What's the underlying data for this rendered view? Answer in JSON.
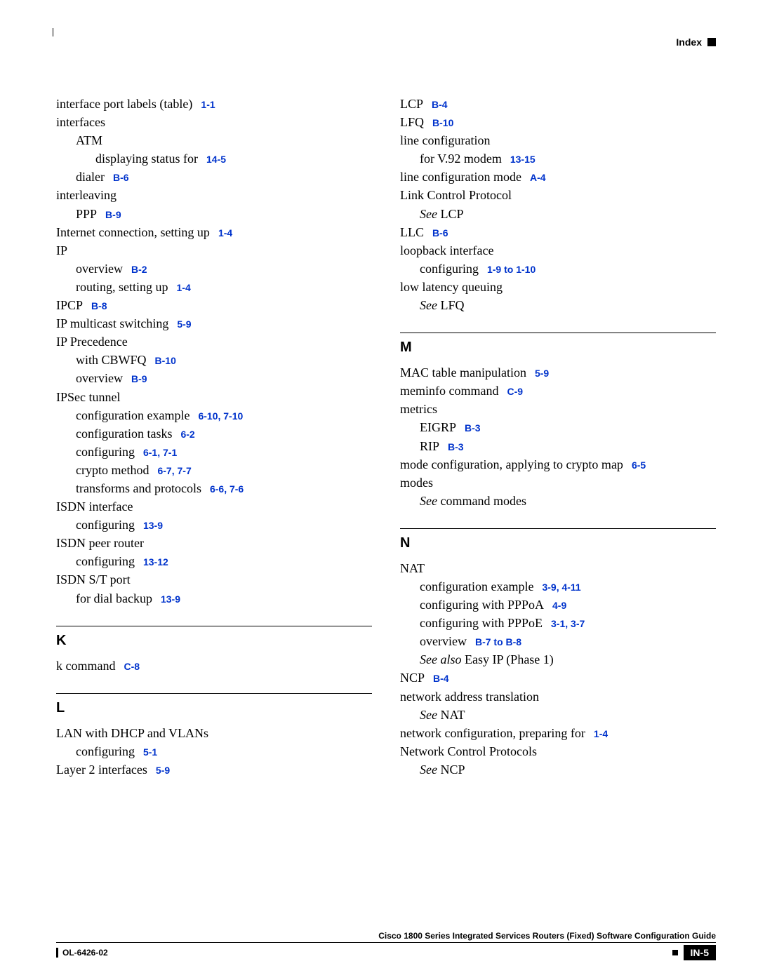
{
  "header": {
    "label": "Index"
  },
  "footer": {
    "guide": "Cisco 1800 Series Integrated Services Routers (Fixed) Software Configuration Guide",
    "doc": "OL-6426-02",
    "page": "IN-5"
  },
  "left": [
    {
      "t": "interface port labels (table)",
      "r": "1-1",
      "i": 0
    },
    {
      "t": "interfaces",
      "i": 0
    },
    {
      "t": "ATM",
      "i": 1
    },
    {
      "t": "displaying status for",
      "r": "14-5",
      "i": 2
    },
    {
      "t": "dialer",
      "r": "B-6",
      "i": 1
    },
    {
      "t": "interleaving",
      "i": 0
    },
    {
      "t": "PPP",
      "r": "B-9",
      "i": 1
    },
    {
      "t": "Internet connection, setting up",
      "r": "1-4",
      "i": 0
    },
    {
      "t": "IP",
      "i": 0
    },
    {
      "t": "overview",
      "r": "B-2",
      "i": 1
    },
    {
      "t": "routing, setting up",
      "r": "1-4",
      "i": 1
    },
    {
      "t": "IPCP",
      "r": "B-8",
      "i": 0
    },
    {
      "t": "IP multicast switching",
      "r": "5-9",
      "i": 0
    },
    {
      "t": "IP Precedence",
      "i": 0
    },
    {
      "t": "with CBWFQ",
      "r": "B-10",
      "i": 1
    },
    {
      "t": "overview",
      "r": "B-9",
      "i": 1
    },
    {
      "t": "IPSec tunnel",
      "i": 0
    },
    {
      "t": "configuration example",
      "r": "6-10, 7-10",
      "i": 1
    },
    {
      "t": "configuration tasks",
      "r": "6-2",
      "i": 1
    },
    {
      "t": "configuring",
      "r": "6-1, 7-1",
      "i": 1
    },
    {
      "t": "crypto method",
      "r": "6-7, 7-7",
      "i": 1
    },
    {
      "t": "transforms and protocols",
      "r": "6-6, 7-6",
      "i": 1
    },
    {
      "t": "ISDN interface",
      "i": 0
    },
    {
      "t": "configuring",
      "r": "13-9",
      "i": 1
    },
    {
      "t": "ISDN peer router",
      "i": 0
    },
    {
      "t": "configuring",
      "r": "13-12",
      "i": 1
    },
    {
      "t": "ISDN S/T port",
      "i": 0
    },
    {
      "t": "for dial backup",
      "r": "13-9",
      "i": 1
    }
  ],
  "sections_left": [
    {
      "letter": "K",
      "items": [
        {
          "t": "k command",
          "r": "C-8",
          "i": 0
        }
      ]
    },
    {
      "letter": "L",
      "items": [
        {
          "t": "LAN with DHCP and VLANs",
          "i": 0
        },
        {
          "t": "configuring",
          "r": "5-1",
          "i": 1
        },
        {
          "t": "Layer 2 interfaces",
          "r": "5-9",
          "i": 0
        }
      ]
    }
  ],
  "right_top": [
    {
      "t": "LCP",
      "r": "B-4",
      "i": 0
    },
    {
      "t": "LFQ",
      "r": "B-10",
      "i": 0
    },
    {
      "t": "line configuration",
      "i": 0
    },
    {
      "t": "for V.92 modem",
      "r": "13-15",
      "i": 1
    },
    {
      "t": "line configuration mode",
      "r": "A-4",
      "i": 0
    },
    {
      "t": "Link Control Protocol",
      "i": 0
    },
    {
      "pre": "See ",
      "t": "LCP",
      "i": 1,
      "italic_pre": true
    },
    {
      "t": "LLC",
      "r": "B-6",
      "i": 0
    },
    {
      "t": "loopback interface",
      "i": 0
    },
    {
      "t": "configuring",
      "r": "1-9 to 1-10",
      "i": 1
    },
    {
      "t": "low latency queuing",
      "i": 0
    },
    {
      "pre": "See ",
      "t": "LFQ",
      "i": 1,
      "italic_pre": true
    }
  ],
  "sections_right": [
    {
      "letter": "M",
      "items": [
        {
          "t": "MAC table manipulation",
          "r": "5-9",
          "i": 0
        },
        {
          "t": "meminfo command",
          "r": "C-9",
          "i": 0
        },
        {
          "t": "metrics",
          "i": 0
        },
        {
          "t": "EIGRP",
          "r": "B-3",
          "i": 1
        },
        {
          "t": "RIP",
          "r": "B-3",
          "i": 1
        },
        {
          "t": "mode configuration, applying to crypto map",
          "r": "6-5",
          "i": 0
        },
        {
          "t": "modes",
          "i": 0
        },
        {
          "pre": "See ",
          "t": "command modes",
          "i": 1,
          "italic_pre": true
        }
      ]
    },
    {
      "letter": "N",
      "items": [
        {
          "t": "NAT",
          "i": 0
        },
        {
          "t": "configuration example",
          "r": "3-9, 4-11",
          "i": 1
        },
        {
          "t": "configuring with PPPoA",
          "r": "4-9",
          "i": 1
        },
        {
          "t": "configuring with PPPoE",
          "r": "3-1, 3-7",
          "i": 1
        },
        {
          "t": "overview",
          "r": "B-7 to B-8",
          "i": 1
        },
        {
          "pre": "See also ",
          "t": "Easy IP (Phase 1)",
          "i": 1,
          "italic_pre": true
        },
        {
          "t": "NCP",
          "r": "B-4",
          "i": 0
        },
        {
          "t": "network address translation",
          "i": 0
        },
        {
          "pre": "See ",
          "t": "NAT",
          "i": 1,
          "italic_pre": true
        },
        {
          "t": "network configuration, preparing for",
          "r": "1-4",
          "i": 0
        },
        {
          "t": "Network Control Protocols",
          "i": 0
        },
        {
          "pre": "See ",
          "t": "NCP",
          "i": 1,
          "italic_pre": true
        }
      ]
    }
  ]
}
